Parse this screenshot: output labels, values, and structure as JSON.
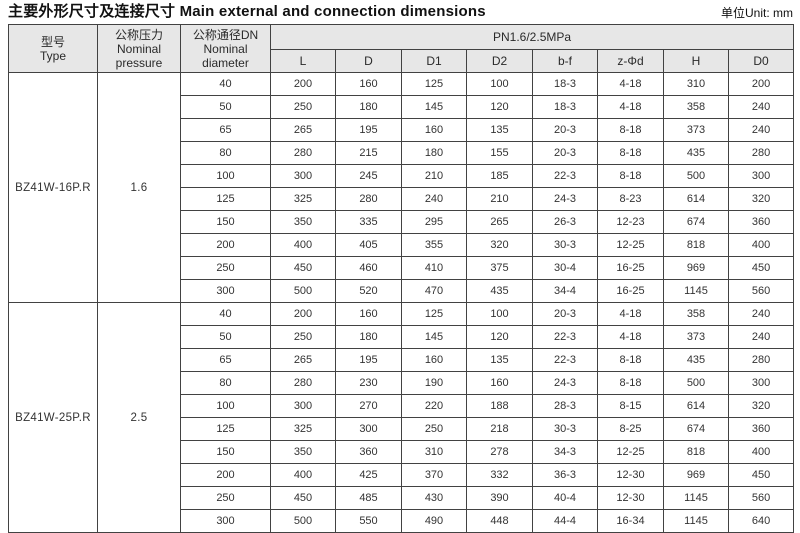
{
  "page": {
    "title": "主要外形尺寸及连接尺寸 Main external and connection dimensions",
    "unit_label": "单位Unit: mm"
  },
  "colors": {
    "header_bg": "#e7e7e7",
    "grid_border": "#424242",
    "text": "#333333",
    "title_text": "#111111"
  },
  "table": {
    "headers": {
      "type_zh": "型号",
      "type_en": "Type",
      "pressure_zh": "公称压力",
      "pressure_en_line1": "Nominal",
      "pressure_en_line2": "pressure",
      "dn_zh": "公称通径DN",
      "dn_en_line1": "Nominal",
      "dn_en_line2": "diameter",
      "pn_span": "PN1.6/2.5MPa",
      "dims": [
        "L",
        "D",
        "D1",
        "D2",
        "b-f",
        "z-Φd",
        "H",
        "D0"
      ]
    },
    "column_keys": [
      "dn",
      "L",
      "D",
      "D1",
      "D2",
      "b-f",
      "z-phi-d",
      "H",
      "D0"
    ],
    "groups": [
      {
        "type": "BZ41W-16P.R",
        "pressure": "1.6",
        "rows": [
          [
            "40",
            "200",
            "160",
            "125",
            "100",
            "18-3",
            "4-18",
            "310",
            "200"
          ],
          [
            "50",
            "250",
            "180",
            "145",
            "120",
            "18-3",
            "4-18",
            "358",
            "240"
          ],
          [
            "65",
            "265",
            "195",
            "160",
            "135",
            "20-3",
            "8-18",
            "373",
            "240"
          ],
          [
            "80",
            "280",
            "215",
            "180",
            "155",
            "20-3",
            "8-18",
            "435",
            "280"
          ],
          [
            "100",
            "300",
            "245",
            "210",
            "185",
            "22-3",
            "8-18",
            "500",
            "300"
          ],
          [
            "125",
            "325",
            "280",
            "240",
            "210",
            "24-3",
            "8-23",
            "614",
            "320"
          ],
          [
            "150",
            "350",
            "335",
            "295",
            "265",
            "26-3",
            "12-23",
            "674",
            "360"
          ],
          [
            "200",
            "400",
            "405",
            "355",
            "320",
            "30-3",
            "12-25",
            "818",
            "400"
          ],
          [
            "250",
            "450",
            "460",
            "410",
            "375",
            "30-4",
            "16-25",
            "969",
            "450"
          ],
          [
            "300",
            "500",
            "520",
            "470",
            "435",
            "34-4",
            "16-25",
            "1145",
            "560"
          ]
        ]
      },
      {
        "type": "BZ41W-25P.R",
        "pressure": "2.5",
        "rows": [
          [
            "40",
            "200",
            "160",
            "125",
            "100",
            "20-3",
            "4-18",
            "358",
            "240"
          ],
          [
            "50",
            "250",
            "180",
            "145",
            "120",
            "22-3",
            "4-18",
            "373",
            "240"
          ],
          [
            "65",
            "265",
            "195",
            "160",
            "135",
            "22-3",
            "8-18",
            "435",
            "280"
          ],
          [
            "80",
            "280",
            "230",
            "190",
            "160",
            "24-3",
            "8-18",
            "500",
            "300"
          ],
          [
            "100",
            "300",
            "270",
            "220",
            "188",
            "28-3",
            "8-15",
            "614",
            "320"
          ],
          [
            "125",
            "325",
            "300",
            "250",
            "218",
            "30-3",
            "8-25",
            "674",
            "360"
          ],
          [
            "150",
            "350",
            "360",
            "310",
            "278",
            "34-3",
            "12-25",
            "818",
            "400"
          ],
          [
            "200",
            "400",
            "425",
            "370",
            "332",
            "36-3",
            "12-30",
            "969",
            "450"
          ],
          [
            "250",
            "450",
            "485",
            "430",
            "390",
            "40-4",
            "12-30",
            "1145",
            "560"
          ],
          [
            "300",
            "500",
            "550",
            "490",
            "448",
            "44-4",
            "16-34",
            "1145",
            "640"
          ]
        ]
      }
    ]
  }
}
